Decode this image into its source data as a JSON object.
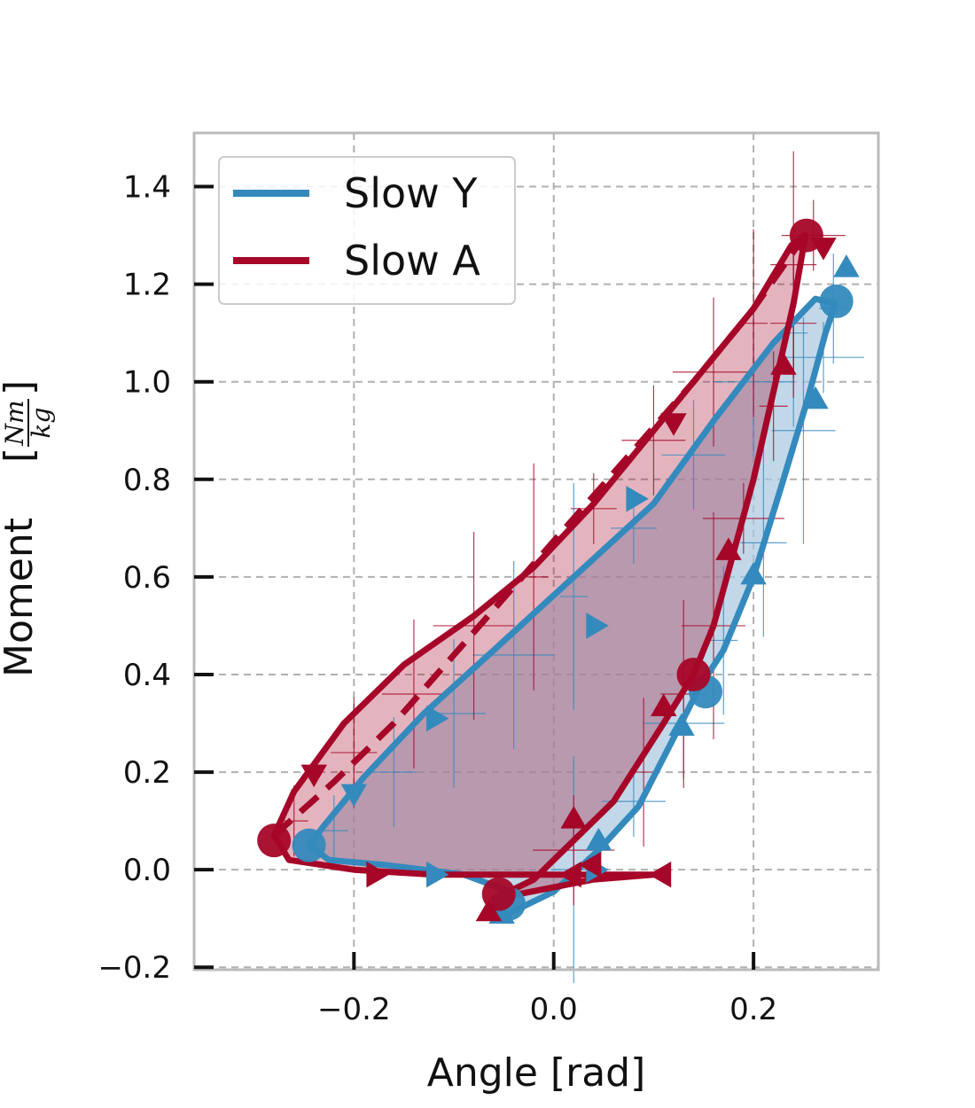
{
  "chart_data": {
    "type": "line",
    "xlabel": "Angle [rad]",
    "ylabel": "Moment",
    "ylabel_unit_num": "Nm",
    "ylabel_unit_den": "kg",
    "xlim": [
      -0.36,
      0.325
    ],
    "ylim": [
      -0.205,
      1.51
    ],
    "xticks": [
      -0.2,
      0.0,
      0.2
    ],
    "xtick_labels": [
      "−0.2",
      "0.0",
      "0.2"
    ],
    "yticks": [
      -0.2,
      0.0,
      0.2,
      0.4,
      0.6,
      0.8,
      1.0,
      1.2,
      1.4
    ],
    "ytick_labels": [
      "−0.2",
      "0.0",
      "0.2",
      "0.4",
      "0.6",
      "0.8",
      "1.0",
      "1.2",
      "1.4"
    ],
    "grid": true,
    "legend_position": "top-left",
    "series": [
      {
        "name": "Slow Y",
        "color": "#348abd",
        "fill_color": "#a8c8e0",
        "loop": [
          [
            -0.055,
            -0.1
          ],
          [
            0.0,
            -0.045
          ],
          [
            0.045,
            0.04
          ],
          [
            0.085,
            0.13
          ],
          [
            0.12,
            0.27
          ],
          [
            0.145,
            0.37
          ],
          [
            0.17,
            0.45
          ],
          [
            0.2,
            0.6
          ],
          [
            0.23,
            0.8
          ],
          [
            0.255,
            0.97
          ],
          [
            0.272,
            1.1
          ],
          [
            0.282,
            1.16
          ],
          [
            0.262,
            1.17
          ],
          [
            0.22,
            1.08
          ],
          [
            0.16,
            0.92
          ],
          [
            0.1,
            0.75
          ],
          [
            0.02,
            0.6
          ],
          [
            -0.06,
            0.45
          ],
          [
            -0.13,
            0.32
          ],
          [
            -0.19,
            0.19
          ],
          [
            -0.23,
            0.09
          ],
          [
            -0.245,
            0.05
          ],
          [
            -0.225,
            0.02
          ],
          [
            -0.17,
            0.01
          ],
          [
            -0.09,
            -0.01
          ],
          [
            -0.05,
            -0.04
          ],
          [
            -0.055,
            -0.1
          ]
        ],
        "circles": [
          [
            -0.245,
            0.05
          ],
          [
            -0.045,
            -0.07
          ],
          [
            0.152,
            0.365
          ],
          [
            0.283,
            1.165
          ]
        ],
        "triangles": [
          [
            -0.2,
            0.16,
            "down"
          ],
          [
            0.08,
            0.76,
            "right"
          ],
          [
            0.04,
            0.5,
            "right"
          ],
          [
            -0.12,
            0.31,
            "right"
          ],
          [
            -0.12,
            -0.01,
            "right"
          ],
          [
            0.04,
            0.0,
            "right"
          ],
          [
            0.045,
            0.055,
            "up"
          ],
          [
            0.128,
            0.29,
            "up"
          ],
          [
            0.2,
            0.6,
            "up"
          ],
          [
            0.262,
            0.96,
            "up"
          ],
          [
            0.293,
            1.23,
            "up"
          ],
          [
            -0.052,
            -0.095,
            "up"
          ]
        ],
        "errorbar_points": [
          [
            -0.22,
            0.08
          ],
          [
            -0.16,
            0.2
          ],
          [
            -0.1,
            0.32
          ],
          [
            -0.04,
            0.44
          ],
          [
            0.02,
            0.56
          ],
          [
            0.08,
            0.7
          ],
          [
            0.14,
            0.85
          ],
          [
            0.2,
            1.0
          ],
          [
            0.24,
            1.1
          ],
          [
            0.02,
            0.0
          ],
          [
            0.08,
            0.14
          ],
          [
            0.13,
            0.3
          ],
          [
            0.17,
            0.47
          ],
          [
            0.21,
            0.67
          ],
          [
            0.25,
            0.9
          ],
          [
            0.27,
            1.05
          ],
          [
            0.28,
            1.15
          ]
        ]
      },
      {
        "name": "Slow A",
        "color": "#a60628",
        "fill_color": "#a60628",
        "loop": [
          [
            -0.06,
            -0.06
          ],
          [
            -0.02,
            -0.02
          ],
          [
            0.02,
            0.06
          ],
          [
            0.06,
            0.14
          ],
          [
            0.11,
            0.3
          ],
          [
            0.14,
            0.4
          ],
          [
            0.16,
            0.5
          ],
          [
            0.18,
            0.65
          ],
          [
            0.2,
            0.8
          ],
          [
            0.22,
            0.98
          ],
          [
            0.24,
            1.16
          ],
          [
            0.252,
            1.3
          ],
          [
            0.238,
            1.28
          ],
          [
            0.2,
            1.15
          ],
          [
            0.16,
            1.05
          ],
          [
            0.1,
            0.9
          ],
          [
            0.04,
            0.75
          ],
          [
            -0.02,
            0.62
          ],
          [
            -0.08,
            0.52
          ],
          [
            -0.15,
            0.42
          ],
          [
            -0.21,
            0.3
          ],
          [
            -0.26,
            0.16
          ],
          [
            -0.28,
            0.07
          ],
          [
            -0.265,
            0.02
          ],
          [
            -0.2,
            0.0
          ],
          [
            -0.12,
            -0.01
          ],
          [
            0.0,
            -0.01
          ],
          [
            0.1,
            -0.01
          ],
          [
            0.04,
            -0.02
          ],
          [
            -0.06,
            -0.06
          ]
        ],
        "dashed": [
          [
            -0.28,
            0.07
          ],
          [
            -0.22,
            0.18
          ],
          [
            -0.16,
            0.3
          ],
          [
            -0.1,
            0.44
          ],
          [
            -0.04,
            0.58
          ],
          [
            0.02,
            0.72
          ],
          [
            0.08,
            0.86
          ],
          [
            0.14,
            1.0
          ],
          [
            0.2,
            1.15
          ],
          [
            0.248,
            1.29
          ]
        ],
        "circles": [
          [
            -0.28,
            0.06
          ],
          [
            -0.055,
            -0.05
          ],
          [
            0.14,
            0.4
          ],
          [
            0.253,
            1.3
          ]
        ],
        "triangles": [
          [
            -0.24,
            0.2,
            "down"
          ],
          [
            0.12,
            0.92,
            "down"
          ],
          [
            0.27,
            1.28,
            "down"
          ],
          [
            0.11,
            -0.01,
            "left"
          ],
          [
            0.02,
            -0.01,
            "left"
          ],
          [
            0.04,
            0.01,
            "left"
          ],
          [
            -0.18,
            -0.01,
            "right"
          ],
          [
            0.02,
            0.1,
            "up"
          ],
          [
            0.11,
            0.33,
            "up"
          ],
          [
            0.175,
            0.65,
            "up"
          ],
          [
            0.23,
            1.03,
            "up"
          ],
          [
            -0.065,
            -0.09,
            "up"
          ]
        ],
        "errorbar_points": [
          [
            -0.26,
            0.1
          ],
          [
            -0.2,
            0.24
          ],
          [
            -0.14,
            0.36
          ],
          [
            -0.08,
            0.5
          ],
          [
            -0.02,
            0.6
          ],
          [
            0.04,
            0.74
          ],
          [
            0.1,
            0.88
          ],
          [
            0.16,
            1.02
          ],
          [
            0.2,
            1.12
          ],
          [
            0.24,
            1.24
          ],
          [
            0.26,
            1.3
          ],
          [
            0.02,
            0.04
          ],
          [
            0.09,
            0.2
          ],
          [
            0.13,
            0.36
          ],
          [
            0.16,
            0.5
          ],
          [
            0.19,
            0.72
          ],
          [
            0.22,
            0.95
          ],
          [
            0.24,
            1.12
          ]
        ]
      }
    ]
  }
}
